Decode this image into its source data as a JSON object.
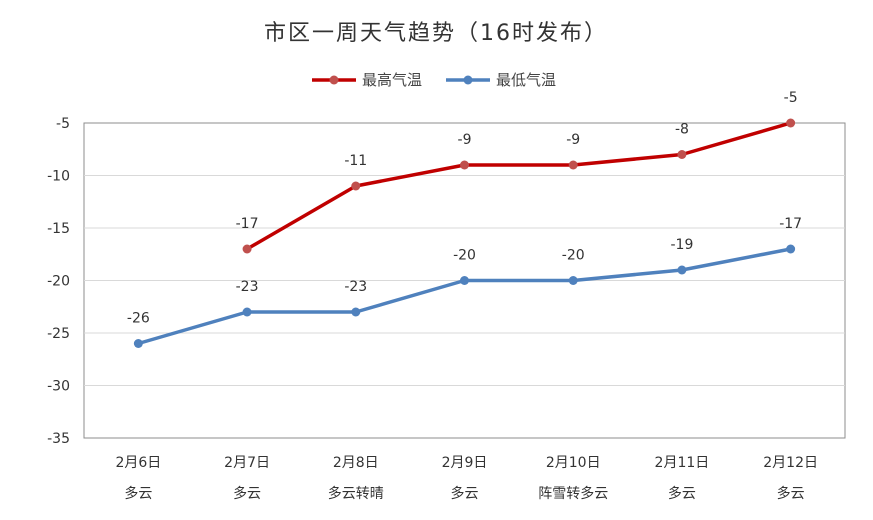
{
  "chart_data": {
    "type": "line",
    "title": "市区一周天气趋势（16时发布）",
    "categories": [
      "2月6日",
      "2月7日",
      "2月8日",
      "2月9日",
      "2月10日",
      "2月11日",
      "2月12日"
    ],
    "weather": [
      "多云",
      "多云",
      "多云转晴",
      "多云",
      "阵雪转多云",
      "多云",
      "多云"
    ],
    "series": [
      {
        "name": "最高气温",
        "color": "#c00000",
        "marker_color": "#c0504d",
        "values": [
          null,
          -17,
          -11,
          -9,
          -9,
          -8,
          -5
        ]
      },
      {
        "name": "最低气温",
        "color": "#4f81bd",
        "marker_color": "#4f81bd",
        "values": [
          -26,
          -23,
          -23,
          -20,
          -20,
          -19,
          -17
        ]
      }
    ],
    "ylim": [
      -35,
      -5
    ],
    "yticks": [
      -5,
      -10,
      -15,
      -20,
      -25,
      -30,
      -35
    ],
    "grid": true,
    "legend": "top-center"
  }
}
